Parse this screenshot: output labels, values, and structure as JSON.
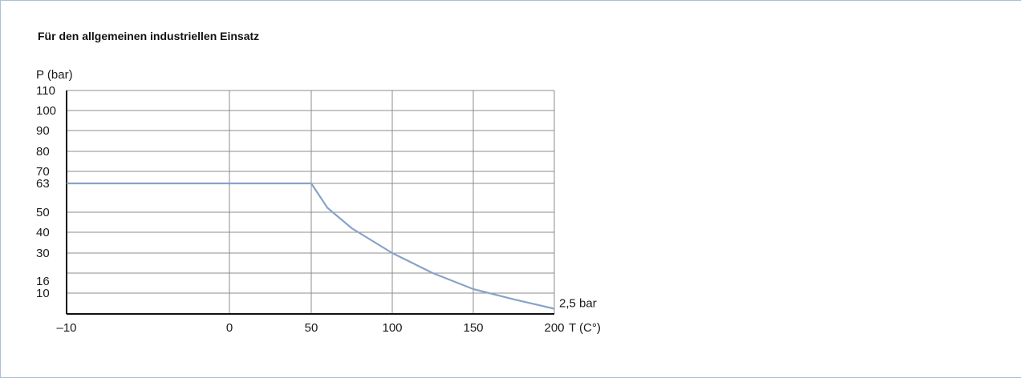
{
  "chart_data": {
    "type": "line",
    "title": "Für den allgemeinen industriellen Einsatz",
    "ylabel": "P (bar)",
    "xlabel": "T (C°)",
    "x_ticks": [
      {
        "value": -10,
        "label": "–10"
      },
      {
        "value": 0,
        "label": "0"
      },
      {
        "value": 50,
        "label": "50"
      },
      {
        "value": 100,
        "label": "100"
      },
      {
        "value": 150,
        "label": "150"
      },
      {
        "value": 200,
        "label": "200"
      }
    ],
    "y_ticks": [
      110,
      100,
      90,
      80,
      70,
      63,
      50,
      40,
      30,
      16,
      10
    ],
    "grid_y": [
      110,
      100,
      90,
      80,
      70,
      63,
      50,
      40,
      30,
      20,
      10
    ],
    "series": [
      {
        "color": "#87a3c8",
        "points": [
          {
            "x": -10,
            "y": 63
          },
          {
            "x": 50,
            "y": 63
          },
          {
            "x": 60,
            "y": 52
          },
          {
            "x": 75,
            "y": 42
          },
          {
            "x": 100,
            "y": 30
          },
          {
            "x": 125,
            "y": 20
          },
          {
            "x": 150,
            "y": 12
          },
          {
            "x": 175,
            "y": 7
          },
          {
            "x": 200,
            "y": 2.5
          }
        ]
      }
    ],
    "annotations": [
      {
        "x": 200,
        "y": 2.5,
        "text": "2,5 bar"
      }
    ],
    "grid": true
  }
}
